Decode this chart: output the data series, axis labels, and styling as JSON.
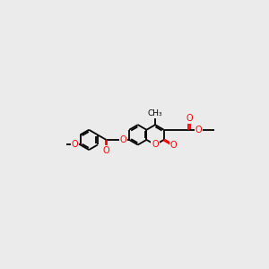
{
  "bg_color": "#ebebeb",
  "bond_color": "#000000",
  "oxygen_color": "#ff0000",
  "lw": 1.3,
  "r_ring": 0.48,
  "figsize": [
    3.0,
    3.0
  ],
  "dpi": 100,
  "xlim": [
    0,
    10
  ],
  "ylim": [
    2,
    8
  ]
}
